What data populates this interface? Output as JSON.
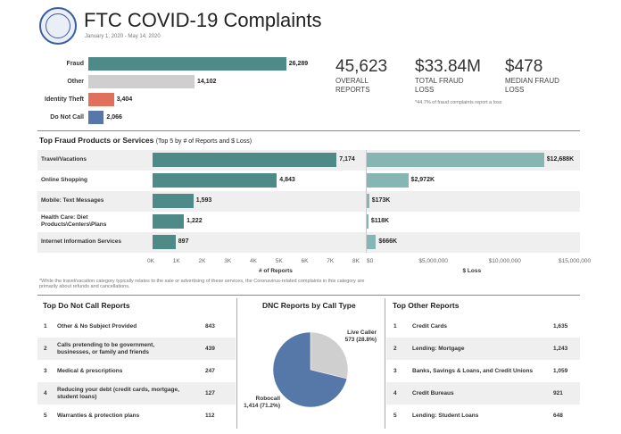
{
  "header": {
    "title": "FTC COVID-19 Complaints",
    "subtitle": "January 1, 2020 - May 14, 2020"
  },
  "kpis": [
    {
      "value": "45,623",
      "label_l1": "OVERALL",
      "label_l2": "REPORTS"
    },
    {
      "value": "$33.84M",
      "label_l1": "TOTAL FRAUD",
      "label_l2": "LOSS"
    },
    {
      "value": "$478",
      "label_l1": "MEDIAN FRAUD",
      "label_l2": "LOSS"
    }
  ],
  "kpi_note": "*44.7% of fraud complaints report a loss",
  "top_fraud_title": "Top Fraud Products or Services",
  "top_fraud_subtitle": "(Top 5 by # of Reports and $ Loss)",
  "footnote_l1": "*While the travel/vacation category typically relates to the sale or advertising of these services, the Coronavirus-related complaints in this category are",
  "footnote_l2": "primarily about refunds and cancellations.",
  "dnc_table": {
    "title": "Top Do Not Call Reports",
    "rows": [
      {
        "rank": "1",
        "l1": "Other & No Subject Provided",
        "l2": "",
        "l3": "",
        "value": "843"
      },
      {
        "rank": "2",
        "l1": "Calls pretending to be government,",
        "l2": "businesses, or family and friends",
        "l3": "",
        "value": "439"
      },
      {
        "rank": "3",
        "l1": "Medical & prescriptions",
        "l2": "",
        "l3": "",
        "value": "247"
      },
      {
        "rank": "4",
        "l1": "Reducing your debt (credit cards, mortgage,",
        "l2": "student loans)",
        "l3": "",
        "value": "127"
      },
      {
        "rank": "5",
        "l1": "Warranties  & protection plans",
        "l2": "",
        "l3": "",
        "value": "112"
      }
    ]
  },
  "other_table": {
    "title": "Top Other Reports",
    "rows": [
      {
        "rank": "1",
        "label": "Credit Cards",
        "value": "1,635"
      },
      {
        "rank": "2",
        "label": "Lending: Mortgage",
        "value": "1,243"
      },
      {
        "rank": "3",
        "label": "Banks, Savings & Loans, and Credit Unions",
        "value": "1,059"
      },
      {
        "rank": "4",
        "label": "Credit Bureaus",
        "value": "921"
      },
      {
        "rank": "5",
        "label": "Lending: Student Loans",
        "value": "648"
      }
    ]
  },
  "chart_data": [
    {
      "type": "bar",
      "orientation": "horizontal",
      "categories": [
        "Fraud",
        "Other",
        "Identity Theft",
        "Do Not Call"
      ],
      "values": [
        26289,
        14102,
        3404,
        2066
      ],
      "value_labels": [
        "26,289",
        "14,102",
        "3,404",
        "2,066"
      ],
      "colors": [
        "#4e8a87",
        "#cfcfcf",
        "#e0705b",
        "#5578a8"
      ],
      "xlim": [
        0,
        27500
      ]
    },
    {
      "type": "bar",
      "orientation": "horizontal",
      "categories": [
        "Travel/Vacations",
        "Online Shopping",
        "Mobile: Text Messages",
        "Health Care: Diet Products\\Centers\\Plans",
        "Internet Information Services"
      ],
      "category_lines": [
        [
          "Travel/Vacations"
        ],
        [
          "Online Shopping"
        ],
        [
          "Mobile: Text Messages"
        ],
        [
          "Health Care: Diet",
          "Products\\Centers\\Plans"
        ],
        [
          "Internet Information Services"
        ]
      ],
      "values": [
        7174,
        4843,
        1593,
        1222,
        897
      ],
      "value_labels": [
        "7,174",
        "4,843",
        "1,593",
        "1,222",
        "897"
      ],
      "xlabel": "# of Reports",
      "xlim": [
        0,
        8000
      ],
      "ticks": [
        "0K",
        "1K",
        "2K",
        "3K",
        "4K",
        "5K",
        "6K",
        "7K",
        "8K"
      ],
      "color": "#4e8a87"
    },
    {
      "type": "bar",
      "orientation": "horizontal",
      "categories": [
        "Travel/Vacations",
        "Online Shopping",
        "Mobile: Text Messages",
        "Health Care: Diet Products\\Centers\\Plans",
        "Internet Information Services"
      ],
      "values": [
        12688000,
        2972000,
        173000,
        118000,
        666000
      ],
      "value_labels": [
        "$12,688K",
        "$2,972K",
        "$173K",
        "$118K",
        "$666K"
      ],
      "xlabel": "$ Loss",
      "xlim": [
        0,
        15000000
      ],
      "ticks": [
        "$0",
        "$5,000,000",
        "$10,000,000",
        "$15,000,000"
      ],
      "color": "#86b6b3"
    },
    {
      "type": "pie",
      "title": "DNC Reports by Call Type",
      "slices": [
        {
          "name": "Live Caller",
          "value": 573,
          "percent": 28.8,
          "label_l1": "Live Caller",
          "label_l2": "573 (28.8%)",
          "color": "#cfcfcf"
        },
        {
          "name": "Robocall",
          "value": 1414,
          "percent": 71.2,
          "label_l1": "Robocall",
          "label_l2": "1,414 (71.2%)",
          "color": "#5578a8"
        }
      ]
    }
  ]
}
